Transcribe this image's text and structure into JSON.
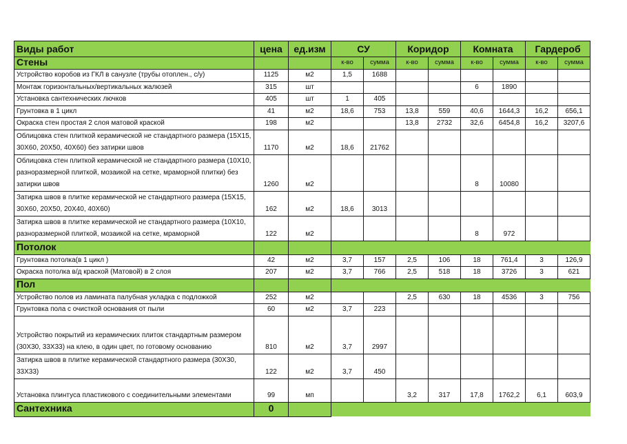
{
  "colors": {
    "header_green": "#92d050",
    "border": "#1a1a1a"
  },
  "header": {
    "work": "Виды работ",
    "price": "цена",
    "unit": "ед.изм",
    "rooms": [
      "СУ",
      "Коридор",
      "Комната",
      "Гардероб"
    ]
  },
  "subheader": {
    "qty": "к-во",
    "sum": "сумма"
  },
  "sections": [
    {
      "title": "Стены",
      "rows": [
        {
          "name": "Устройство коробов из ГКЛ в санузле (трубы отоплен., с/у)",
          "price": "1125",
          "unit": "м2",
          "v": [
            "1,5",
            "1688",
            "",
            "",
            "",
            "",
            "",
            ""
          ]
        },
        {
          "name": "Монтаж горизонтальных/вертикальных жалюзей",
          "price": "315",
          "unit": "шт",
          "v": [
            "",
            "",
            "",
            "",
            "6",
            "1890",
            "",
            ""
          ]
        },
        {
          "name": "Установка сантехнических лючков",
          "price": "405",
          "unit": "шт",
          "v": [
            "1",
            "405",
            "",
            "",
            "",
            "",
            "",
            ""
          ]
        },
        {
          "name": "Грунтовка в 1 цикл",
          "price": "41",
          "unit": "м2",
          "v": [
            "18,6",
            "753",
            "13,8",
            "559",
            "40,6",
            "1644,3",
            "16,2",
            "656,1"
          ]
        },
        {
          "name": "Окраска стен простая 2 слоя матовой краской",
          "price": "198",
          "unit": "м2",
          "v": [
            "",
            "",
            "13,8",
            "2732",
            "32,6",
            "6454,8",
            "16,2",
            "3207,6"
          ]
        },
        {
          "name": "Облицовка стен плиткой керамической не стандартного размера (15Х15, 30Х60, 20Х50, 40Х60) без затирки швов",
          "price": "1170",
          "unit": "м2",
          "v": [
            "18,6",
            "21762",
            "",
            "",
            "",
            "",
            "",
            ""
          ]
        },
        {
          "name": "Облицовка стен плиткой керамической не стандартного размера (10Х10, разноразмерной плиткой, мозаикой на сетке, мраморной плитки) без затирки швов",
          "price": "1260",
          "unit": "м2",
          "v": [
            "",
            "",
            "",
            "",
            "8",
            "10080",
            "",
            ""
          ]
        },
        {
          "name": "Затирка швов в плитке керамической не стандартного размера (15Х15, 30Х60, 20Х50, 20Х40, 40Х60)",
          "price": "162",
          "unit": "м2",
          "v": [
            "18,6",
            "3013",
            "",
            "",
            "",
            "",
            "",
            ""
          ]
        },
        {
          "name": "Затирка швов в плитке керамической не стандартного размера (10Х10, разноразмерной плиткой, мозаикой на сетке, мраморной",
          "price": "122",
          "unit": "м2",
          "v": [
            "",
            "",
            "",
            "",
            "8",
            "972",
            "",
            ""
          ]
        }
      ]
    },
    {
      "title": "Потолок",
      "rows": [
        {
          "name": "Грунтовка потолка(в 1 цикл )",
          "price": "42",
          "unit": "м2",
          "v": [
            "3,7",
            "157",
            "2,5",
            "106",
            "18",
            "761,4",
            "3",
            "126,9"
          ]
        },
        {
          "name": "Окраска потолка в/д краской (Матовой) в 2 слоя",
          "price": "207",
          "unit": "м2",
          "v": [
            "3,7",
            "766",
            "2,5",
            "518",
            "18",
            "3726",
            "3",
            "621"
          ]
        }
      ]
    },
    {
      "title": "Пол",
      "rows": [
        {
          "name": "Устройство полов из ламината палубная укладка с подложкой",
          "price": "252",
          "unit": "м2",
          "v": [
            "",
            "",
            "2,5",
            "630",
            "18",
            "4536",
            "3",
            "756"
          ]
        },
        {
          "name": "Грунтовка пола с очисткой основания от пыли",
          "price": "60",
          "unit": "м2",
          "v": [
            "3,7",
            "223",
            "",
            "",
            "",
            "",
            "",
            ""
          ]
        },
        {
          "name": "Устройство покрытий из керамических плиток стандартным размером (30Х30, 33Х33) на клею, в один цвет, по готовому основанию",
          "price": "810",
          "unit": "м2",
          "v": [
            "3,7",
            "2997",
            "",
            "",
            "",
            "",
            "",
            ""
          ]
        },
        {
          "name": "Затирка швов в плитке керамической стандартного размера (30Х30, 33Х33)",
          "price": "122",
          "unit": "м2",
          "v": [
            "3,7",
            "450",
            "",
            "",
            "",
            "",
            "",
            ""
          ]
        },
        {
          "name": "Установка плинтуса пластикового с соединительными элементами",
          "price": "99",
          "unit": "мп",
          "v": [
            "",
            "",
            "3,2",
            "317",
            "17,8",
            "1762,2",
            "6,1",
            "603,9"
          ]
        }
      ]
    },
    {
      "title": "Сантехника",
      "price": "0",
      "rows": []
    }
  ]
}
